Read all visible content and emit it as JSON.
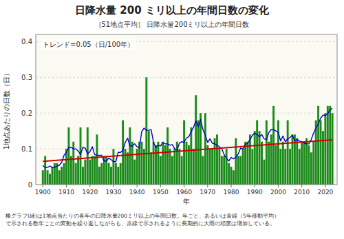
{
  "chart_data": {
    "type": "bar",
    "title": "日降水量 200 ミリ以上の年間日数の変化",
    "subtitle": "［51地点平均］ 日降水量200ミリ以上の年間日数",
    "annotations": [
      "トレンド=0.05（日/100年）"
    ],
    "footnote": "棒グラフ(緑)は1地点当たりの各年の日降水量200ミリ以上の年間日数。年ごと、あるいは青線（5年移動平均）\nで示される数年ごとの変動を繰り返しながらも、赤線で示されるように長期的に大雨の頻度は増加している。",
    "xlabel": "年",
    "ylabel": "1地点あたりの日数（日）",
    "x": [
      1900,
      1901,
      1902,
      1903,
      1904,
      1905,
      1906,
      1907,
      1908,
      1909,
      1910,
      1911,
      1912,
      1913,
      1914,
      1915,
      1916,
      1917,
      1918,
      1919,
      1920,
      1921,
      1922,
      1923,
      1924,
      1925,
      1926,
      1927,
      1928,
      1929,
      1930,
      1931,
      1932,
      1933,
      1934,
      1935,
      1936,
      1937,
      1938,
      1939,
      1940,
      1941,
      1942,
      1943,
      1944,
      1945,
      1946,
      1947,
      1948,
      1949,
      1950,
      1951,
      1952,
      1953,
      1954,
      1955,
      1956,
      1957,
      1958,
      1959,
      1960,
      1961,
      1962,
      1963,
      1964,
      1965,
      1966,
      1967,
      1968,
      1969,
      1970,
      1971,
      1972,
      1973,
      1974,
      1975,
      1976,
      1977,
      1978,
      1979,
      1980,
      1981,
      1982,
      1983,
      1984,
      1985,
      1986,
      1987,
      1988,
      1989,
      1990,
      1991,
      1992,
      1993,
      1994,
      1995,
      1996,
      1997,
      1998,
      1999,
      2000,
      2001,
      2002,
      2003,
      2004,
      2005,
      2006,
      2007,
      2008,
      2009,
      2010,
      2011,
      2012,
      2013,
      2014,
      2015,
      2016,
      2017,
      2018,
      2019,
      2020,
      2021,
      2022,
      2023
    ],
    "series": [
      {
        "type": "bar",
        "color": "#1a8a1a",
        "values": [
          0.04,
          0.08,
          0.04,
          0.03,
          0.05,
          0.06,
          0.06,
          0.04,
          0.05,
          0.06,
          0.1,
          0.16,
          0.08,
          0.12,
          0.06,
          0.08,
          0.16,
          0.05,
          0.07,
          0.16,
          0.07,
          0.08,
          0.08,
          0.14,
          0.05,
          0.06,
          0.08,
          0.08,
          0.06,
          0.05,
          0.1,
          0.06,
          0.05,
          0.06,
          0.18,
          0.1,
          0.09,
          0.16,
          0.12,
          0.07,
          0.1,
          0.12,
          0.12,
          0.1,
          0.3,
          0.15,
          0.09,
          0.12,
          0.11,
          0.12,
          0.08,
          0.12,
          0.11,
          0.16,
          0.1,
          0.08,
          0.1,
          0.12,
          0.1,
          0.08,
          0.18,
          0.12,
          0.11,
          0.16,
          0.1,
          0.25,
          0.18,
          0.2,
          0.08,
          0.2,
          0.11,
          0.1,
          0.1,
          0.13,
          0.14,
          0.1,
          0.08,
          0.08,
          0.1,
          0.06,
          0.05,
          0.04,
          0.13,
          0.08,
          0.08,
          0.1,
          0.12,
          0.12,
          0.14,
          0.1,
          0.15,
          0.18,
          0.15,
          0.12,
          0.07,
          0.18,
          0.12,
          0.14,
          0.22,
          0.11,
          0.18,
          0.1,
          0.12,
          0.1,
          0.18,
          0.1,
          0.14,
          0.14,
          0.13,
          0.1,
          0.12,
          0.12,
          0.13,
          0.11,
          0.09,
          0.12,
          0.18,
          0.22,
          0.18,
          0.15,
          0.2,
          0.22,
          0.22,
          0.2
        ]
      },
      {
        "type": "line",
        "color": "#0000cc",
        "values": [
          0.0533333,
          0.0475,
          0.048,
          0.052,
          0.048,
          0.048,
          0.052,
          0.054,
          0.062,
          0.082,
          0.09,
          0.104,
          0.104,
          0.1,
          0.1,
          0.094,
          0.084,
          0.104,
          0.102,
          0.086,
          0.092,
          0.106,
          0.084,
          0.082,
          0.082,
          0.082,
          0.066,
          0.066,
          0.074,
          0.07,
          0.064,
          0.064,
          0.09,
          0.09,
          0.096,
          0.118,
          0.13,
          0.108,
          0.108,
          0.114,
          0.106,
          0.102,
          0.148,
          0.158,
          0.152,
          0.152,
          0.154,
          0.118,
          0.104,
          0.11,
          0.108,
          0.118,
          0.114,
          0.114,
          0.11,
          0.112,
          0.1,
          0.096,
          0.116,
          0.12,
          0.118,
          0.13,
          0.134,
          0.148,
          0.16,
          0.178,
          0.162,
          0.182,
          0.154,
          0.138,
          0.118,
          0.128,
          0.116,
          0.114,
          0.11,
          0.106,
          0.1,
          0.084,
          0.074,
          0.066,
          0.076,
          0.072,
          0.076,
          0.086,
          0.102,
          0.1,
          0.112,
          0.116,
          0.126,
          0.138,
          0.144,
          0.14,
          0.134,
          0.14,
          0.128,
          0.126,
          0.146,
          0.154,
          0.154,
          0.15,
          0.146,
          0.122,
          0.136,
          0.12,
          0.128,
          0.132,
          0.138,
          0.122,
          0.126,
          0.122,
          0.12,
          0.116,
          0.114,
          0.114,
          0.126,
          0.144,
          0.158,
          0.17,
          0.186,
          0.194,
          0.194,
          0.198,
          0.21,
          0.2133333
        ]
      },
      {
        "type": "line",
        "color": "#cc0000",
        "x": [
          1900,
          2023
        ],
        "values": [
          0.065,
          0.125
        ]
      }
    ],
    "xlim": [
      1897,
      2025
    ],
    "xticks": [
      1900,
      1910,
      1920,
      1930,
      1940,
      1950,
      1960,
      1970,
      1980,
      1990,
      2000,
      2010,
      2020
    ],
    "ylim": [
      0,
      0.42
    ],
    "yticks": [
      0.0,
      0.1,
      0.2,
      0.3,
      0.4
    ],
    "grid": true
  }
}
